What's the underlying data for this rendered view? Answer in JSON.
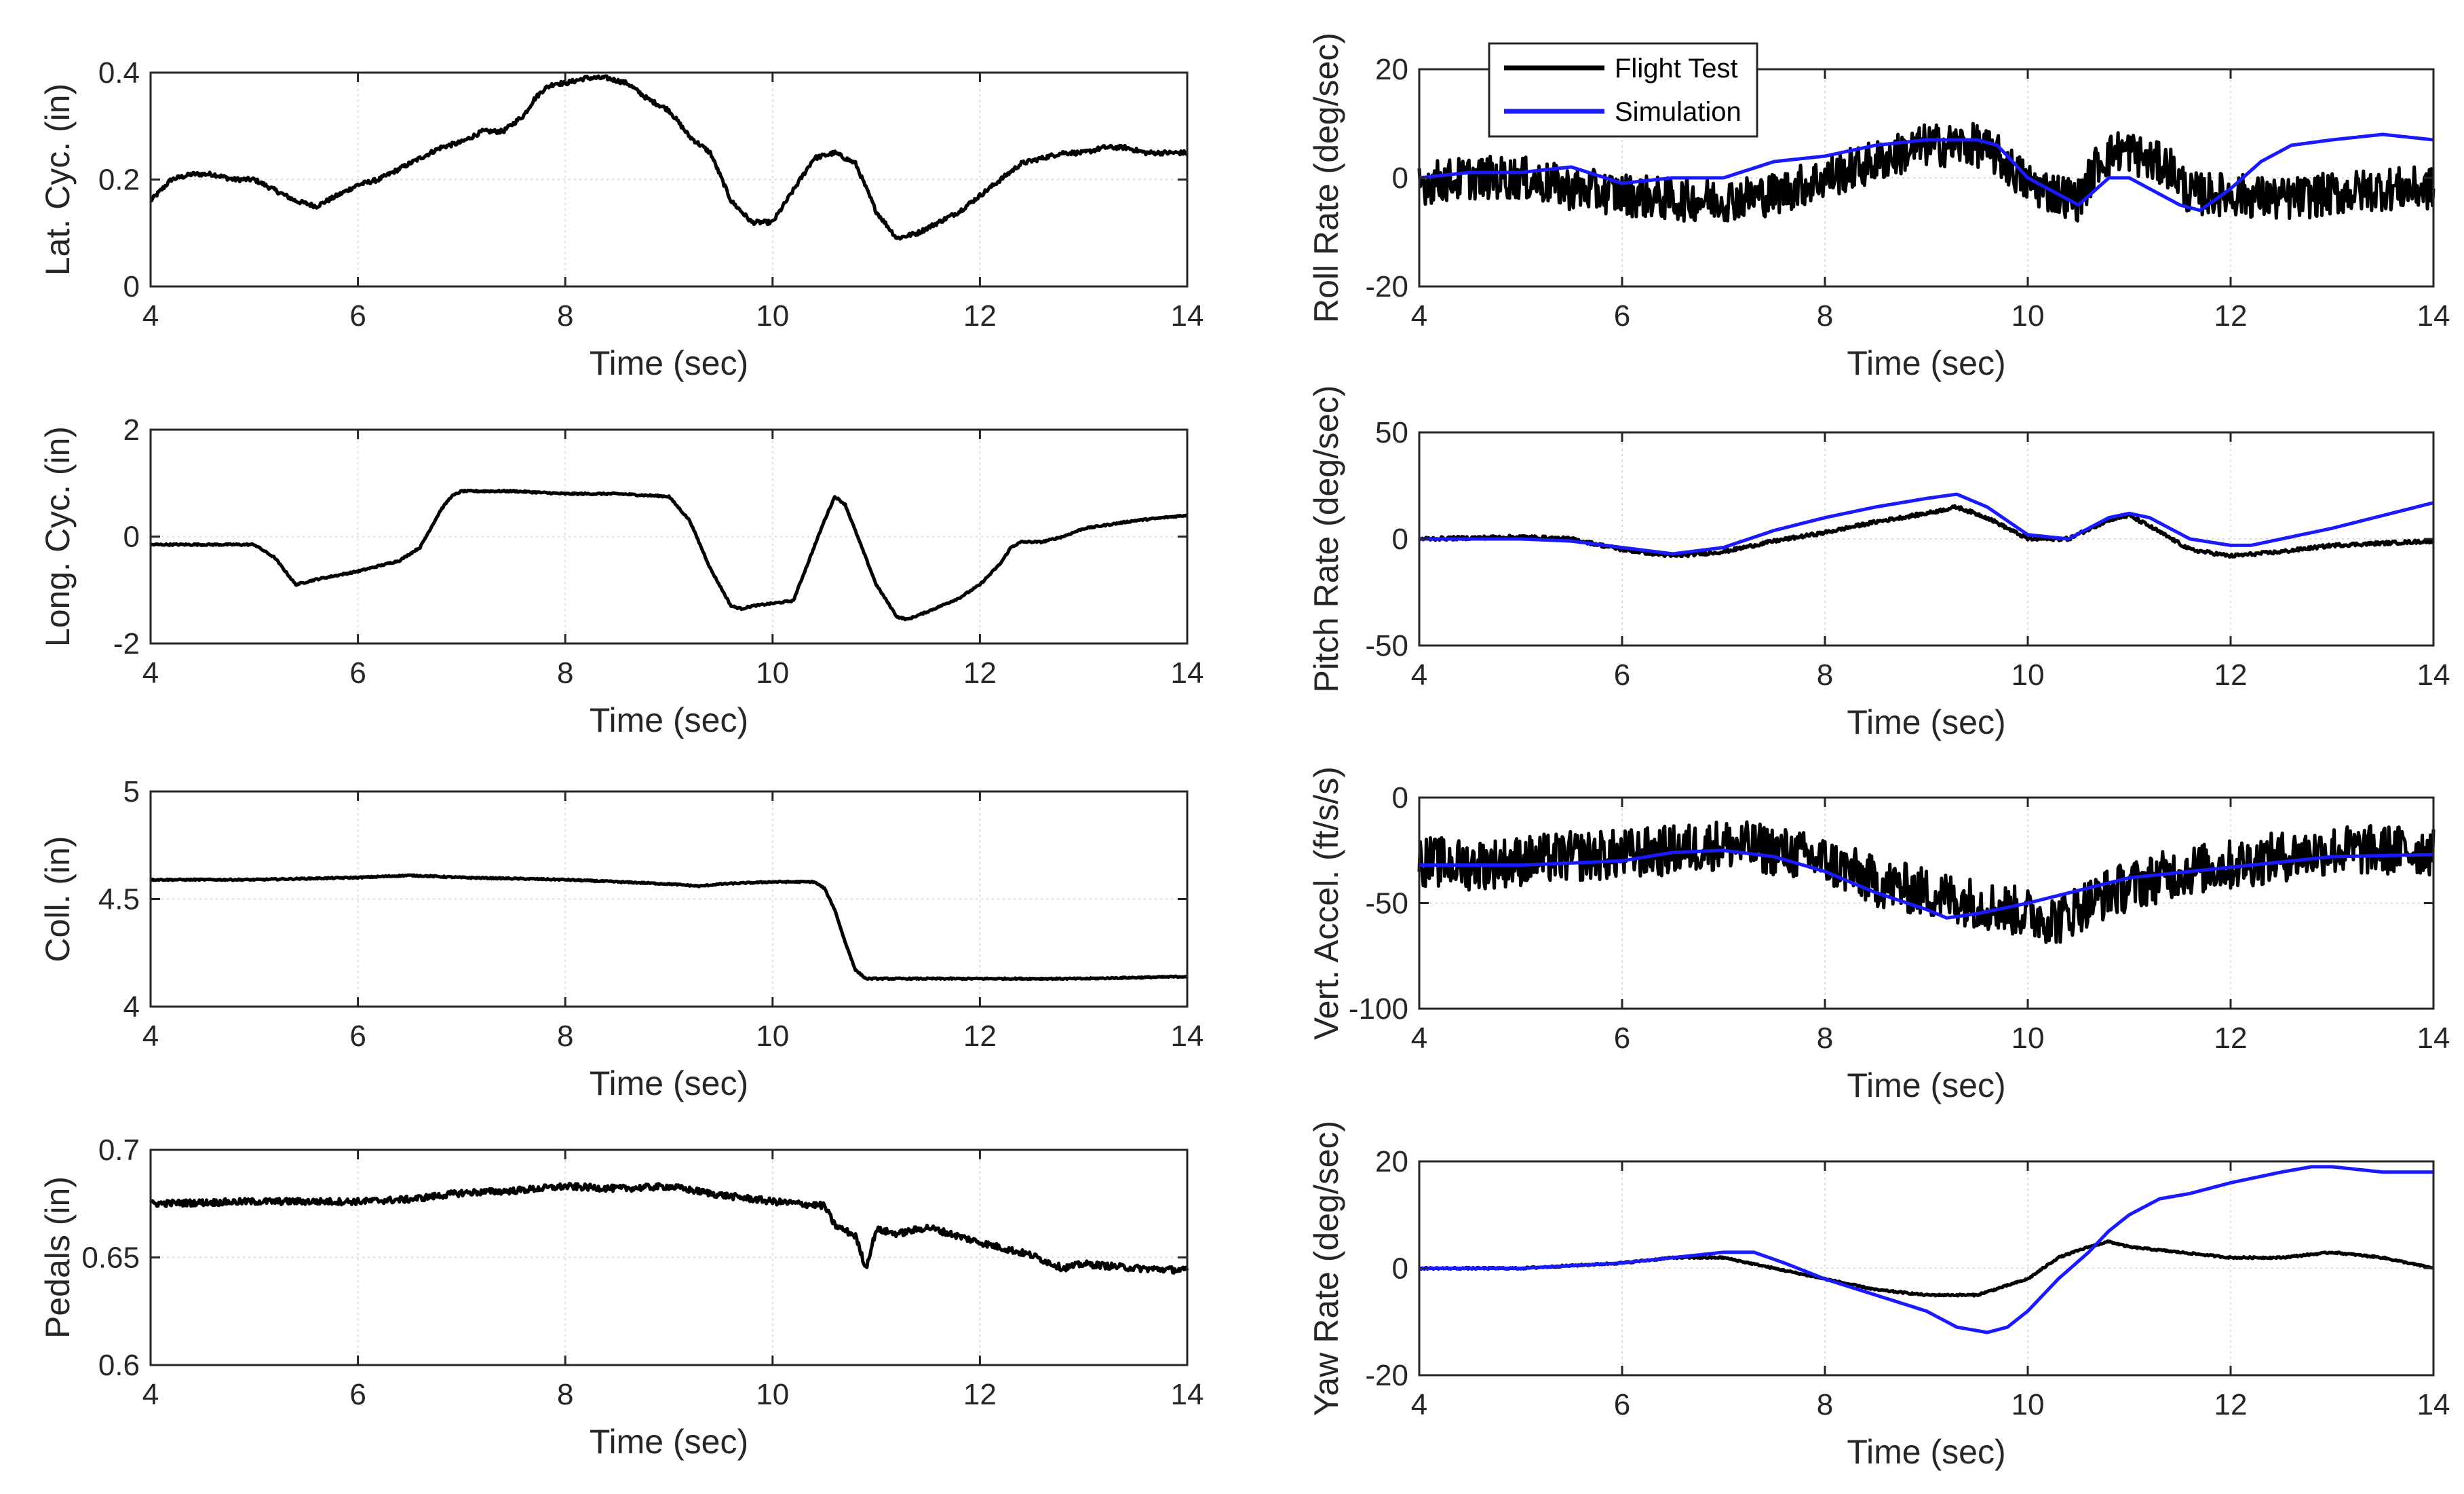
{
  "colors": {
    "flight": "#000000",
    "sim": "#1a1aff",
    "grid": "#dcdcdc",
    "axis": "#262626"
  },
  "legend": {
    "entries": [
      "Flight Test",
      "Simulation"
    ],
    "placement": "top-left of Roll Rate panel"
  },
  "chart_data": [
    {
      "id": "lat",
      "type": "line",
      "title": "",
      "xlabel": "Time (sec)",
      "ylabel": "Lat. Cyc. (in)",
      "xlim": [
        4,
        14
      ],
      "ylim": [
        0,
        0.4
      ],
      "xticks": [
        "4",
        "6",
        "8",
        "10",
        "12",
        "14"
      ],
      "yticks": [
        "0",
        "0.2",
        "0.4"
      ],
      "noise": 0.004,
      "lineWidth": 5,
      "series": [
        {
          "name": "Flight Test",
          "color": "#000000",
          "x": [
            4.0,
            4.2,
            4.4,
            4.6,
            4.8,
            5.0,
            5.2,
            5.4,
            5.6,
            5.8,
            6.0,
            6.2,
            6.4,
            6.6,
            6.8,
            7.0,
            7.2,
            7.4,
            7.6,
            7.7,
            7.8,
            7.9,
            8.0,
            8.2,
            8.4,
            8.6,
            8.8,
            9.0,
            9.2,
            9.4,
            9.6,
            9.8,
            10.0,
            10.2,
            10.4,
            10.6,
            10.8,
            11.0,
            11.2,
            11.4,
            11.6,
            11.8,
            12.0,
            12.2,
            12.4,
            12.6,
            12.8,
            13.0,
            13.2,
            13.4,
            13.6,
            13.8,
            14.0
          ],
          "y": [
            0.16,
            0.2,
            0.21,
            0.21,
            0.2,
            0.2,
            0.18,
            0.16,
            0.15,
            0.17,
            0.19,
            0.2,
            0.22,
            0.24,
            0.26,
            0.27,
            0.29,
            0.29,
            0.32,
            0.35,
            0.37,
            0.38,
            0.38,
            0.39,
            0.39,
            0.38,
            0.35,
            0.33,
            0.28,
            0.25,
            0.16,
            0.12,
            0.12,
            0.18,
            0.24,
            0.25,
            0.23,
            0.14,
            0.09,
            0.1,
            0.12,
            0.14,
            0.17,
            0.2,
            0.23,
            0.24,
            0.25,
            0.25,
            0.26,
            0.26,
            0.25,
            0.25,
            0.25
          ]
        }
      ]
    },
    {
      "id": "long",
      "type": "line",
      "title": "",
      "xlabel": "Time (sec)",
      "ylabel": "Long. Cyc. (in)",
      "xlim": [
        4,
        14
      ],
      "ylim": [
        -2,
        2
      ],
      "xticks": [
        "4",
        "6",
        "8",
        "10",
        "12",
        "14"
      ],
      "yticks": [
        "-2",
        "0",
        "2"
      ],
      "noise": 0.015,
      "lineWidth": 5,
      "series": [
        {
          "name": "Flight Test",
          "color": "#000000",
          "x": [
            4.0,
            4.5,
            5.0,
            5.2,
            5.4,
            5.6,
            6.0,
            6.4,
            6.6,
            6.8,
            6.9,
            7.0,
            7.5,
            8.0,
            8.5,
            9.0,
            9.2,
            9.4,
            9.6,
            9.7,
            9.8,
            10.0,
            10.2,
            10.4,
            10.5,
            10.6,
            10.7,
            10.8,
            11.0,
            11.2,
            11.3,
            11.5,
            11.8,
            12.0,
            12.2,
            12.3,
            12.4,
            12.6,
            12.8,
            13.0,
            13.5,
            14.0
          ],
          "y": [
            -0.15,
            -0.15,
            -0.15,
            -0.4,
            -0.9,
            -0.8,
            -0.65,
            -0.45,
            -0.2,
            0.5,
            0.75,
            0.85,
            0.85,
            0.8,
            0.8,
            0.75,
            0.3,
            -0.6,
            -1.3,
            -1.35,
            -1.3,
            -1.25,
            -1.2,
            -0.2,
            0.3,
            0.75,
            0.6,
            0.1,
            -0.9,
            -1.5,
            -1.55,
            -1.4,
            -1.15,
            -0.9,
            -0.5,
            -0.2,
            -0.1,
            -0.1,
            0.0,
            0.15,
            0.3,
            0.4
          ]
        }
      ]
    },
    {
      "id": "coll",
      "type": "line",
      "title": "",
      "xlabel": "Time (sec)",
      "ylabel": "Coll. (in)",
      "xlim": [
        4,
        14
      ],
      "ylim": [
        4,
        5
      ],
      "xticks": [
        "4",
        "6",
        "8",
        "10",
        "12",
        "14"
      ],
      "yticks": [
        "4",
        "4.5",
        "5"
      ],
      "noise": 0.003,
      "lineWidth": 5,
      "series": [
        {
          "name": "Flight Test",
          "color": "#000000",
          "x": [
            4.0,
            5.0,
            6.0,
            6.5,
            7.0,
            8.0,
            9.0,
            9.3,
            9.5,
            10.0,
            10.4,
            10.5,
            10.6,
            10.7,
            10.8,
            10.9,
            11.0,
            11.5,
            12.0,
            13.0,
            14.0
          ],
          "y": [
            4.59,
            4.59,
            4.6,
            4.61,
            4.6,
            4.59,
            4.57,
            4.56,
            4.57,
            4.58,
            4.58,
            4.55,
            4.45,
            4.3,
            4.17,
            4.13,
            4.13,
            4.13,
            4.13,
            4.13,
            4.14
          ]
        }
      ]
    },
    {
      "id": "pedals",
      "type": "line",
      "title": "",
      "xlabel": "Time (sec)",
      "ylabel": "Pedals (in)",
      "xlim": [
        4,
        14
      ],
      "ylim": [
        0.6,
        0.7
      ],
      "xticks": [
        "4",
        "6",
        "8",
        "10",
        "12",
        "14"
      ],
      "yticks": [
        "0.6",
        "0.65",
        "0.7"
      ],
      "noise": 0.0015,
      "lineWidth": 5,
      "series": [
        {
          "name": "Flight Test",
          "color": "#000000",
          "x": [
            4.0,
            5.0,
            6.0,
            6.5,
            7.0,
            7.5,
            8.0,
            8.5,
            9.0,
            9.5,
            10.0,
            10.5,
            10.6,
            10.8,
            10.9,
            11.0,
            11.2,
            11.5,
            12.0,
            12.5,
            12.8,
            13.0,
            13.5,
            14.0
          ],
          "y": [
            0.675,
            0.676,
            0.676,
            0.677,
            0.68,
            0.681,
            0.683,
            0.682,
            0.683,
            0.679,
            0.676,
            0.674,
            0.665,
            0.66,
            0.645,
            0.663,
            0.661,
            0.664,
            0.657,
            0.651,
            0.645,
            0.647,
            0.645,
            0.644
          ]
        }
      ]
    },
    {
      "id": "roll",
      "type": "line",
      "title": "",
      "xlabel": "Time (sec)",
      "ylabel": "Roll Rate (deg/sec)",
      "xlim": [
        4,
        14
      ],
      "ylim": [
        -20,
        20
      ],
      "xticks": [
        "4",
        "6",
        "8",
        "10",
        "12",
        "14"
      ],
      "yticks": [
        "-20",
        "0",
        "20"
      ],
      "noise": 4,
      "lineWidth": 5,
      "series": [
        {
          "name": "Flight Test",
          "color": "#000000",
          "x": [
            4.0,
            4.5,
            5.0,
            5.5,
            6.0,
            6.5,
            7.0,
            7.5,
            8.0,
            8.5,
            9.0,
            9.5,
            9.7,
            10.0,
            10.3,
            10.5,
            10.7,
            10.9,
            11.0,
            11.2,
            11.4,
            11.6,
            12.0,
            12.5,
            13.0,
            13.5,
            14.0
          ],
          "y": [
            -1,
            0,
            0,
            -2,
            -3,
            -4,
            -4,
            -3,
            0,
            3,
            6,
            6,
            4,
            -1,
            -3,
            -4,
            3,
            5,
            5,
            3,
            2,
            -3,
            -3,
            -4,
            -3,
            -2,
            -2
          ]
        },
        {
          "name": "Simulation",
          "color": "#1a1aff",
          "x": [
            4.0,
            4.5,
            5.0,
            5.5,
            6.0,
            6.5,
            7.0,
            7.5,
            8.0,
            8.5,
            9.0,
            9.5,
            9.7,
            10.0,
            10.3,
            10.5,
            10.8,
            11.0,
            11.2,
            11.5,
            11.7,
            12.0,
            12.3,
            12.6,
            13.0,
            13.5,
            14.0
          ],
          "y": [
            0,
            1,
            1,
            2,
            -1,
            0,
            0,
            3,
            4,
            6,
            7,
            7,
            6,
            0,
            -3,
            -5,
            0,
            0,
            -2,
            -5,
            -6,
            -2,
            3,
            6,
            7,
            8,
            7
          ]
        }
      ]
    },
    {
      "id": "pitch",
      "type": "line",
      "title": "",
      "xlabel": "Time (sec)",
      "ylabel": "Pitch Rate (deg/sec)",
      "xlim": [
        4,
        14
      ],
      "ylim": [
        -50,
        50
      ],
      "xticks": [
        "4",
        "6",
        "8",
        "10",
        "12",
        "14"
      ],
      "yticks": [
        "-50",
        "0",
        "50"
      ],
      "noise": 0.8,
      "lineWidth": 5,
      "series": [
        {
          "name": "Flight Test",
          "color": "#000000",
          "x": [
            4.0,
            5.0,
            5.5,
            6.0,
            6.5,
            7.0,
            7.5,
            8.0,
            8.5,
            9.0,
            9.3,
            9.6,
            10.0,
            10.4,
            10.8,
            11.0,
            11.2,
            11.6,
            12.0,
            12.5,
            13.0,
            13.5,
            14.0
          ],
          "y": [
            0,
            1,
            0,
            -5,
            -8,
            -6,
            -1,
            3,
            8,
            12,
            15,
            10,
            0,
            0,
            9,
            11,
            6,
            -5,
            -8,
            -6,
            -3,
            -2,
            -1
          ]
        },
        {
          "name": "Simulation",
          "color": "#1a1aff",
          "x": [
            4.0,
            5.0,
            5.5,
            6.0,
            6.5,
            7.0,
            7.5,
            8.0,
            8.5,
            9.0,
            9.3,
            9.6,
            10.0,
            10.4,
            10.8,
            11.0,
            11.2,
            11.6,
            12.0,
            12.2,
            12.5,
            13.0,
            13.5,
            14.0
          ],
          "y": [
            0,
            0,
            -1,
            -4,
            -7,
            -4,
            4,
            10,
            15,
            19,
            21,
            15,
            2,
            0,
            10,
            12,
            10,
            0,
            -3,
            -3,
            0,
            5,
            11,
            17
          ]
        }
      ]
    },
    {
      "id": "vert",
      "type": "line",
      "title": "",
      "xlabel": "Time (sec)",
      "ylabel": "Vert. Accel. (ft/s/s)",
      "xlim": [
        4,
        14
      ],
      "ylim": [
        -100,
        0
      ],
      "xticks": [
        "4",
        "6",
        "8",
        "10",
        "12",
        "14"
      ],
      "yticks": [
        "-100",
        "-50",
        "0"
      ],
      "noise": 12,
      "lineWidth": 5,
      "series": [
        {
          "name": "Flight Test",
          "color": "#000000",
          "x": [
            4.0,
            4.5,
            5.0,
            5.5,
            6.0,
            6.5,
            7.0,
            7.5,
            8.0,
            8.5,
            9.0,
            9.5,
            10.0,
            10.3,
            10.5,
            10.8,
            11.0,
            11.5,
            12.0,
            12.5,
            13.0,
            13.5,
            14.0
          ],
          "y": [
            -30,
            -32,
            -30,
            -28,
            -27,
            -25,
            -22,
            -25,
            -30,
            -40,
            -45,
            -50,
            -55,
            -58,
            -52,
            -45,
            -42,
            -35,
            -32,
            -28,
            -25,
            -25,
            -25
          ]
        },
        {
          "name": "Simulation",
          "color": "#1a1aff",
          "x": [
            4.0,
            5.0,
            6.0,
            6.5,
            7.0,
            7.5,
            8.0,
            8.5,
            9.0,
            9.2,
            9.5,
            10.0,
            10.5,
            11.0,
            12.0,
            13.0,
            14.0
          ],
          "y": [
            -32,
            -32,
            -30,
            -26,
            -25,
            -28,
            -35,
            -45,
            -53,
            -57,
            -55,
            -50,
            -44,
            -38,
            -33,
            -28,
            -27
          ]
        }
      ]
    },
    {
      "id": "yaw",
      "type": "line",
      "title": "",
      "xlabel": "Time (sec)",
      "ylabel": "Yaw Rate (deg/sec)",
      "xlim": [
        4,
        14
      ],
      "ylim": [
        -20,
        20
      ],
      "xticks": [
        "4",
        "6",
        "8",
        "10",
        "12",
        "14"
      ],
      "yticks": [
        "-20",
        "0",
        "20"
      ],
      "noise": 0.15,
      "lineWidth": 5,
      "series": [
        {
          "name": "Flight Test",
          "color": "#000000",
          "x": [
            4.0,
            5.0,
            6.0,
            6.5,
            7.0,
            7.5,
            8.0,
            8.5,
            9.0,
            9.5,
            10.0,
            10.3,
            10.6,
            10.8,
            11.0,
            11.5,
            12.0,
            12.5,
            13.0,
            13.5,
            14.0
          ],
          "y": [
            0,
            0,
            1,
            2,
            2,
            0,
            -2,
            -4,
            -5,
            -5,
            -2,
            2,
            4,
            5,
            4,
            3,
            2,
            2,
            3,
            2,
            0
          ]
        },
        {
          "name": "Simulation",
          "color": "#1a1aff",
          "x": [
            4.0,
            5.0,
            6.0,
            6.5,
            7.0,
            7.3,
            7.6,
            8.0,
            8.5,
            9.0,
            9.3,
            9.6,
            9.8,
            10.0,
            10.3,
            10.6,
            10.8,
            11.0,
            11.3,
            11.6,
            12.0,
            12.5,
            12.8,
            13.0,
            13.5,
            14.0
          ],
          "y": [
            0,
            0,
            1,
            2,
            3,
            3,
            1,
            -2,
            -5,
            -8,
            -11,
            -12,
            -11,
            -8,
            -2,
            3,
            7,
            10,
            13,
            14,
            16,
            18,
            19,
            19,
            18,
            18
          ]
        }
      ]
    }
  ]
}
